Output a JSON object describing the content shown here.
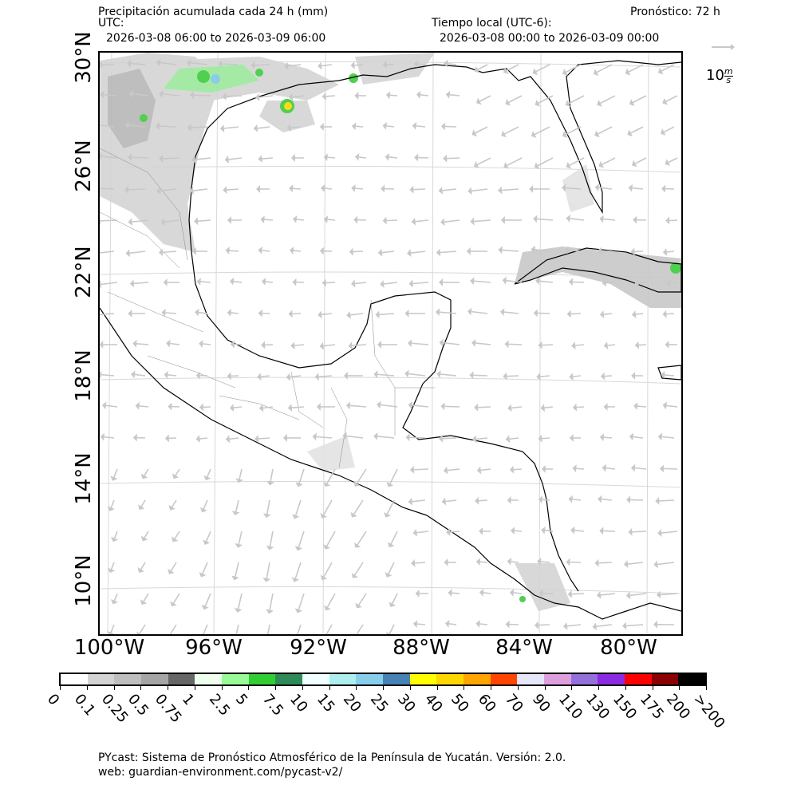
{
  "header": {
    "title": "Precipitación acumulada cada 24 h (mm)",
    "forecast": "Pronóstico: 72 h",
    "utc_label": "UTC:",
    "utc_range": "2026-03-08 06:00 to 2026-03-09 06:00",
    "local_label": "Tiempo local (UTC-6):",
    "local_range": "2026-03-08 00:00 to 2026-03-09 00:00"
  },
  "wind_reference": {
    "value": "10",
    "unit_num": "m",
    "unit_den": "s"
  },
  "map": {
    "lat_labels": [
      "30°N",
      "26°N",
      "22°N",
      "18°N",
      "14°N",
      "10°N"
    ],
    "lon_labels": [
      "100°W",
      "96°W",
      "92°W",
      "88°W",
      "84°W",
      "80°W"
    ],
    "colors": {
      "land_outline": "#000000",
      "grid": "#cfcfcf",
      "arrow": "#c8c8c8",
      "precip_light": "#d4d4d4",
      "precip_mid": "#a8a8a8",
      "precip_green": "#3ccc3c",
      "precip_blue": "#7ec8e6",
      "precip_yellow": "#ffff00"
    }
  },
  "colorbar": {
    "labels": [
      "0",
      "0.1",
      "0.25",
      "0.5",
      "0.75",
      "1",
      "2.5",
      "5",
      "7.5",
      "10",
      "15",
      "20",
      "25",
      "30",
      "40",
      "50",
      "60",
      "70",
      "90",
      "110",
      "130",
      "150",
      "175",
      "200",
      ">200"
    ],
    "colors": [
      "#ffffff",
      "#d3d3d3",
      "#bebebe",
      "#a5a5a5",
      "#666666",
      "#eeffee",
      "#98fb98",
      "#32cd32",
      "#2e8b57",
      "#f0ffff",
      "#afeeee",
      "#87ceeb",
      "#4682b4",
      "#ffff00",
      "#ffd700",
      "#ffa500",
      "#ff4500",
      "#e6e6fa",
      "#dda0dd",
      "#9370db",
      "#8a2be2",
      "#ff0000",
      "#8b0000",
      "#000000"
    ]
  },
  "footer": {
    "line1": "PYcast: Sistema de Pronóstico Atmosférico de la Península de Yucatán. Versión: 2.0.",
    "line2": "web: guardian-environment.com/pycast-v2/"
  }
}
